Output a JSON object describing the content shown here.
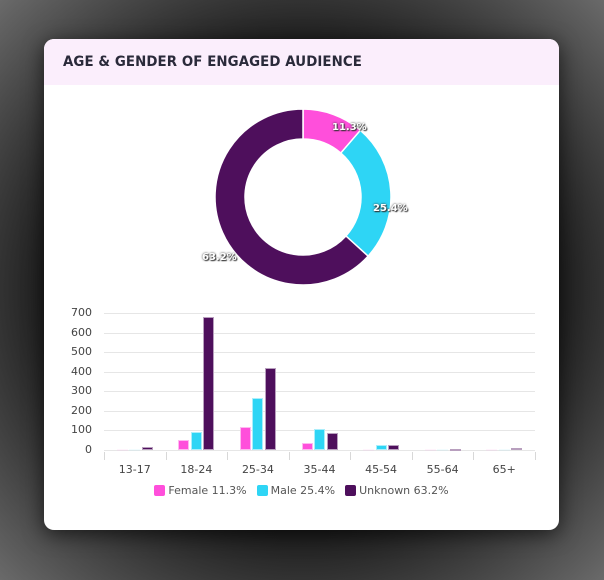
{
  "card": {
    "title": "AGE & GENDER OF ENGAGED AUDIENCE"
  },
  "colors": {
    "female": "#ff4fdb",
    "male": "#2ed5f5",
    "unknown": "#4e0f5c",
    "header_bg": "#fbeefc"
  },
  "legend": [
    {
      "key": "female",
      "label": "Female 11.3%"
    },
    {
      "key": "male",
      "label": "Male 25.4%"
    },
    {
      "key": "unknown",
      "label": "Unknown 63.2%"
    }
  ],
  "chart_data": [
    {
      "type": "pie",
      "title": "",
      "donut": true,
      "categories": [
        "Female",
        "Male",
        "Unknown"
      ],
      "values": [
        11.3,
        25.4,
        63.2
      ],
      "labels": [
        "11.3%",
        "25.4%",
        "63.2%"
      ]
    },
    {
      "type": "bar",
      "title": "",
      "xlabel": "",
      "ylabel": "",
      "categories": [
        "13-17",
        "18-24",
        "25-34",
        "35-44",
        "45-54",
        "55-64",
        "65+"
      ],
      "series": [
        {
          "name": "Female 11.3%",
          "values": [
            2,
            50,
            120,
            35,
            3,
            2,
            2
          ]
        },
        {
          "name": "Male 25.4%",
          "values": [
            2,
            90,
            265,
            105,
            25,
            3,
            3
          ]
        },
        {
          "name": "Unknown 63.2%",
          "values": [
            15,
            680,
            420,
            85,
            25,
            5,
            10
          ]
        }
      ],
      "ylim": [
        0,
        700
      ],
      "yticks": [
        "700",
        "600",
        "500",
        "400",
        "300",
        "200",
        "100",
        "0"
      ],
      "grid": true,
      "legend_position": "bottom"
    }
  ]
}
